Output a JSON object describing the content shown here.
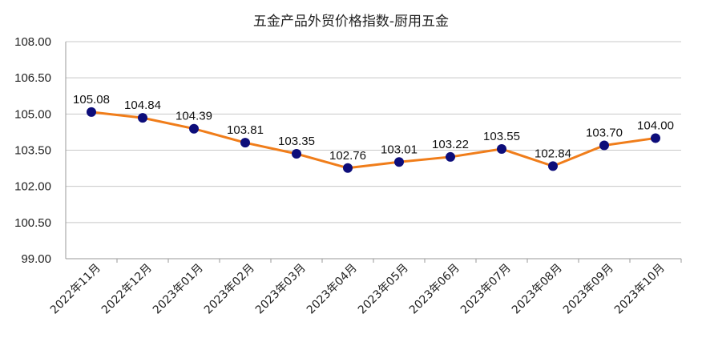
{
  "chart_data": {
    "type": "line",
    "title": "五金产品外贸价格指数-厨用五金",
    "xlabel": "",
    "ylabel": "",
    "categories": [
      "2022年11月",
      "2022年12月",
      "2023年01月",
      "2023年02月",
      "2023年03月",
      "2023年04月",
      "2023年05月",
      "2023年06月",
      "2023年07月",
      "2023年08月",
      "2023年09月",
      "2023年10月"
    ],
    "series": [
      {
        "values": [
          105.08,
          104.84,
          104.39,
          103.81,
          103.35,
          102.76,
          103.01,
          103.22,
          103.55,
          102.84,
          103.7,
          104.0
        ]
      }
    ],
    "data_labels": [
      "105.08",
      "104.84",
      "104.39",
      "103.81",
      "103.35",
      "102.76",
      "103.01",
      "103.22",
      "103.55",
      "102.84",
      "103.70",
      "104.00"
    ],
    "ylim": [
      99.0,
      108.0
    ],
    "yticks": [
      99.0,
      100.5,
      102.0,
      103.5,
      105.0,
      106.5,
      108.0
    ],
    "ytick_labels": [
      "99.00",
      "100.50",
      "102.00",
      "103.50",
      "105.00",
      "106.50",
      "108.00"
    ],
    "grid": true,
    "legend": "none",
    "colors": {
      "line": "#F07D1A",
      "marker": "#0D0D7A",
      "grid": "#C8C8C8",
      "axis": "#999999"
    }
  }
}
